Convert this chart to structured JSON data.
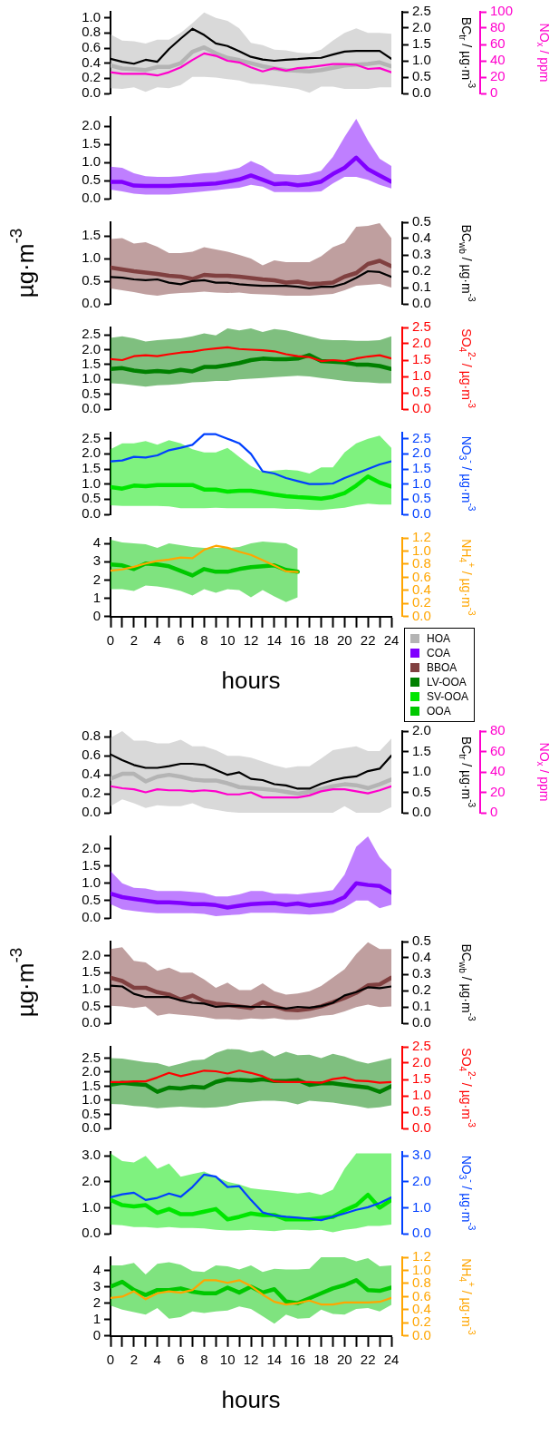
{
  "chart_data": [
    {
      "type": "line",
      "marker": "none",
      "x": [
        0,
        1,
        2,
        3,
        4,
        5,
        6,
        7,
        8,
        9,
        10,
        11,
        12,
        13,
        14,
        15,
        16,
        17,
        18,
        19,
        20,
        21,
        22,
        23,
        24
      ],
      "xlim": [
        0,
        24
      ],
      "tick_labels": "y",
      "ylim": [
        0,
        1.08
      ],
      "yticks": [
        {
          "value": 0,
          "label": "0.0"
        },
        0.2,
        0.4,
        0.6,
        0.8,
        {
          "value": 1,
          "label": "1.0"
        }
      ],
      "y2lim": [
        0,
        2.5
      ],
      "y2ticks": [
        {
          "value": 0,
          "label": "0.0"
        },
        0.5,
        {
          "value": 1,
          "label": "1.0"
        },
        1.5,
        {
          "value": 2,
          "label": "2.0"
        },
        2.5
      ],
      "y2label": "BC$_{tr}$ / µg·m$^{-3}$",
      "y3lim": [
        0,
        100
      ],
      "y3ticks": [
        0,
        20,
        40,
        60,
        80,
        100
      ],
      "y3label": "NO$_{x}$ / ppm",
      "series": [
        {
          "name": "HOA",
          "color": "#b4b4b4",
          "values": [
            0.37,
            0.33,
            0.32,
            0.31,
            0.35,
            0.35,
            0.4,
            0.55,
            0.61,
            0.53,
            0.47,
            0.44,
            0.4,
            0.36,
            0.33,
            0.31,
            0.3,
            0.29,
            0.31,
            0.34,
            0.37,
            0.38,
            0.39,
            0.41,
            0.36
          ],
          "upper": [
            0.78,
            0.7,
            0.69,
            0.66,
            0.71,
            0.71,
            0.8,
            0.93,
            1.07,
            1.0,
            0.96,
            0.86,
            0.67,
            0.64,
            0.58,
            0.57,
            0.54,
            0.53,
            0.58,
            0.7,
            0.8,
            0.86,
            0.8,
            0.8,
            0.79
          ],
          "lower": [
            0.07,
            0.06,
            0.08,
            0.02,
            0.08,
            0.07,
            0.11,
            0.22,
            0.22,
            0.21,
            0.19,
            0.17,
            0.13,
            0.12,
            0.1,
            0.08,
            0.06,
            0.01,
            0.09,
            0.09,
            0.06,
            0.06,
            0.06,
            0.08,
            0.08
          ]
        },
        {
          "color": "#000000",
          "axis": "y2",
          "values": [
            1.06,
            0.97,
            0.91,
            1.03,
            0.97,
            1.36,
            1.68,
            1.98,
            1.79,
            1.53,
            1.45,
            1.29,
            1.12,
            1.04,
            1.0,
            1.03,
            1.05,
            1.08,
            1.09,
            1.19,
            1.28,
            1.3,
            1.3,
            1.3,
            1.06
          ]
        },
        {
          "color": "#ff00cc",
          "axis": "y3",
          "values": [
            26,
            24,
            24,
            24,
            22,
            26,
            32,
            41,
            49,
            46,
            40,
            38,
            32,
            27,
            31,
            28,
            31,
            32,
            34,
            36,
            36,
            35,
            30,
            31,
            26
          ]
        }
      ]
    },
    {
      "type": "line",
      "marker": "none",
      "x": [
        0,
        1,
        2,
        3,
        4,
        5,
        6,
        7,
        8,
        9,
        10,
        11,
        12,
        13,
        14,
        15,
        16,
        17,
        18,
        19,
        20,
        21,
        22,
        23,
        24
      ],
      "xlim": [
        0,
        24
      ],
      "tick_labels": "y",
      "ylim": [
        0,
        2.25
      ],
      "yticks": [
        {
          "value": 0,
          "label": "0.0"
        },
        0.5,
        {
          "value": 1,
          "label": "1.0"
        },
        1.5,
        {
          "value": 2,
          "label": "2.0"
        }
      ],
      "series": [
        {
          "name": "COA",
          "color": "#8000ff",
          "values": [
            0.46,
            0.46,
            0.36,
            0.35,
            0.35,
            0.35,
            0.37,
            0.38,
            0.4,
            0.42,
            0.47,
            0.53,
            0.64,
            0.52,
            0.4,
            0.42,
            0.37,
            0.4,
            0.47,
            0.68,
            0.85,
            1.13,
            0.81,
            0.64,
            0.47
          ],
          "upper": [
            0.88,
            0.85,
            0.7,
            0.62,
            0.6,
            0.6,
            0.62,
            0.66,
            0.7,
            0.72,
            0.78,
            0.85,
            1.04,
            0.9,
            0.68,
            0.66,
            0.65,
            0.68,
            0.77,
            1.15,
            1.7,
            2.2,
            1.6,
            1.1,
            0.9
          ],
          "lower": [
            0.25,
            0.2,
            0.14,
            0.11,
            0.11,
            0.11,
            0.14,
            0.17,
            0.2,
            0.23,
            0.27,
            0.3,
            0.38,
            0.33,
            0.18,
            0.18,
            0.18,
            0.18,
            0.2,
            0.42,
            0.6,
            0.6,
            0.52,
            0.38,
            0.28
          ]
        }
      ]
    },
    {
      "type": "line",
      "marker": "none",
      "x": [
        0,
        1,
        2,
        3,
        4,
        5,
        6,
        7,
        8,
        9,
        10,
        11,
        12,
        13,
        14,
        15,
        16,
        17,
        18,
        19,
        20,
        21,
        22,
        23,
        24
      ],
      "xlim": [
        0,
        24
      ],
      "tick_labels": "y",
      "ylabel": "µg·m$^{-3}$",
      "ylim": [
        0,
        1.8
      ],
      "yticks": [
        {
          "value": 0,
          "label": "0.0"
        },
        0.5,
        {
          "value": 1,
          "label": "1.0"
        },
        1.5
      ],
      "y2lim": [
        0,
        0.5
      ],
      "y2ticks": [
        {
          "value": 0,
          "label": "0.0"
        },
        0.1,
        0.2,
        0.3,
        0.4,
        0.5
      ],
      "y2label": "BC$_{wb}$ / µg·m$^{-3}$",
      "series": [
        {
          "name": "BBOA",
          "color": "#804040",
          "values": [
            0.8,
            0.76,
            0.72,
            0.69,
            0.66,
            0.62,
            0.6,
            0.55,
            0.64,
            0.62,
            0.62,
            0.6,
            0.57,
            0.54,
            0.52,
            0.47,
            0.49,
            0.44,
            0.45,
            0.47,
            0.6,
            0.68,
            0.88,
            0.95,
            0.83
          ],
          "upper": [
            1.43,
            1.45,
            1.33,
            1.36,
            1.26,
            1.12,
            1.12,
            1.15,
            1.25,
            1.2,
            1.15,
            1.08,
            1.0,
            0.85,
            0.96,
            0.92,
            0.92,
            0.92,
            1.05,
            1.25,
            1.35,
            1.7,
            1.72,
            1.78,
            1.45
          ],
          "lower": [
            0.34,
            0.3,
            0.26,
            0.21,
            0.18,
            0.22,
            0.24,
            0.25,
            0.27,
            0.25,
            0.24,
            0.25,
            0.22,
            0.21,
            0.2,
            0.18,
            0.18,
            0.18,
            0.2,
            0.22,
            0.3,
            0.4,
            0.42,
            0.44,
            0.36
          ]
        },
        {
          "color": "#000000",
          "axis": "y2",
          "values": [
            0.165,
            0.16,
            0.15,
            0.145,
            0.15,
            0.13,
            0.12,
            0.14,
            0.145,
            0.13,
            0.13,
            0.12,
            0.115,
            0.11,
            0.11,
            0.11,
            0.105,
            0.095,
            0.105,
            0.105,
            0.125,
            0.16,
            0.2,
            0.195,
            0.165
          ]
        }
      ]
    },
    {
      "type": "line",
      "marker": "none",
      "x": [
        0,
        1,
        2,
        3,
        4,
        5,
        6,
        7,
        8,
        9,
        10,
        11,
        12,
        13,
        14,
        15,
        16,
        17,
        18,
        19,
        20,
        21,
        22,
        23,
        24
      ],
      "xlim": [
        0,
        24
      ],
      "tick_labels": "y",
      "ylim": [
        0,
        2.75
      ],
      "yticks": [
        {
          "value": 0,
          "label": "0.0"
        },
        0.5,
        {
          "value": 1,
          "label": "1.0"
        },
        1.5,
        {
          "value": 2,
          "label": "2.0"
        },
        2.5
      ],
      "y2lim": [
        0,
        2.5
      ],
      "y2ticks": [
        {
          "value": 0,
          "label": "0.0"
        },
        0.5,
        {
          "value": 1,
          "label": "1.0"
        },
        1.5,
        {
          "value": 2,
          "label": "2.0"
        },
        2.5
      ],
      "y2label": "SO$_{4}$$^{2-}$ / µg·m$^{-3}$",
      "series": [
        {
          "name": "LV-OOA",
          "color": "#008000",
          "values": [
            1.35,
            1.38,
            1.3,
            1.25,
            1.28,
            1.25,
            1.32,
            1.27,
            1.42,
            1.42,
            1.48,
            1.55,
            1.65,
            1.7,
            1.68,
            1.68,
            1.7,
            1.82,
            1.62,
            1.6,
            1.57,
            1.5,
            1.5,
            1.45,
            1.35
          ],
          "upper": [
            2.4,
            2.45,
            2.38,
            2.28,
            2.32,
            2.35,
            2.38,
            2.45,
            2.55,
            2.48,
            2.72,
            2.65,
            2.72,
            2.6,
            2.7,
            2.65,
            2.55,
            2.45,
            2.35,
            2.32,
            2.32,
            2.3,
            2.3,
            2.32,
            2.45
          ],
          "lower": [
            0.87,
            0.85,
            0.8,
            0.76,
            0.8,
            0.82,
            0.85,
            0.9,
            0.92,
            0.95,
            0.95,
            1.0,
            1.02,
            1.05,
            1.08,
            1.1,
            1.12,
            1.1,
            1.05,
            1.0,
            0.95,
            0.92,
            0.9,
            0.87,
            0.87
          ]
        },
        {
          "color": "#ff0000",
          "axis": "y2",
          "values": [
            1.53,
            1.5,
            1.62,
            1.65,
            1.62,
            1.68,
            1.73,
            1.76,
            1.82,
            1.86,
            1.89,
            1.84,
            1.82,
            1.8,
            1.77,
            1.68,
            1.62,
            1.59,
            1.47,
            1.5,
            1.47,
            1.55,
            1.61,
            1.65,
            1.55
          ]
        }
      ]
    },
    {
      "type": "line",
      "marker": "none",
      "x": [
        0,
        1,
        2,
        3,
        4,
        5,
        6,
        7,
        8,
        9,
        10,
        11,
        12,
        13,
        14,
        15,
        16,
        17,
        18,
        19,
        20,
        21,
        22,
        23,
        24
      ],
      "xlim": [
        0,
        24
      ],
      "tick_labels": "y",
      "ylim": [
        0,
        2.7
      ],
      "yticks": [
        {
          "value": 0,
          "label": "0.0"
        },
        0.5,
        {
          "value": 1,
          "label": "1.0"
        },
        1.5,
        {
          "value": 2,
          "label": "2.0"
        },
        2.5
      ],
      "y2lim": [
        0,
        2.7
      ],
      "y2ticks": [
        {
          "value": 0,
          "label": "0.0"
        },
        0.5,
        {
          "value": 1,
          "label": "1.0"
        },
        1.5,
        {
          "value": 2,
          "label": "2.0"
        },
        2.5
      ],
      "y2label": "NO$_{3}$$^{-}$ / µg·m$^{-3}$",
      "series": [
        {
          "name": "SV-OOA",
          "color": "#00e600",
          "values": [
            0.9,
            0.85,
            0.95,
            0.93,
            0.97,
            0.97,
            0.97,
            0.97,
            0.82,
            0.82,
            0.75,
            0.78,
            0.78,
            0.72,
            0.65,
            0.6,
            0.57,
            0.55,
            0.52,
            0.58,
            0.7,
            0.95,
            1.25,
            1.05,
            0.92
          ],
          "upper": [
            2.15,
            2.35,
            2.35,
            2.42,
            2.3,
            2.45,
            2.35,
            2.15,
            2.05,
            2.05,
            2.2,
            1.9,
            1.6,
            1.4,
            1.45,
            1.48,
            1.45,
            1.35,
            1.55,
            1.55,
            2.05,
            2.35,
            2.5,
            2.6,
            2.2
          ],
          "lower": [
            0.3,
            0.28,
            0.28,
            0.28,
            0.28,
            0.26,
            0.2,
            0.2,
            0.2,
            0.22,
            0.2,
            0.2,
            0.2,
            0.2,
            0.2,
            0.18,
            0.18,
            0.15,
            0.14,
            0.18,
            0.22,
            0.3,
            0.35,
            0.32,
            0.32
          ]
        },
        {
          "color": "#0040ff",
          "axis": "y2",
          "values": [
            1.75,
            1.78,
            1.9,
            1.88,
            1.95,
            2.12,
            2.2,
            2.3,
            2.65,
            2.65,
            2.5,
            2.35,
            2.0,
            1.42,
            1.35,
            1.2,
            1.1,
            1.0,
            1.0,
            1.02,
            1.2,
            1.35,
            1.5,
            1.65,
            1.75
          ]
        }
      ]
    },
    {
      "type": "line",
      "marker": "none",
      "legend": "right",
      "x": [
        0,
        1,
        2,
        3,
        4,
        5,
        6,
        7,
        8,
        9,
        10,
        11,
        12,
        13,
        14,
        15,
        16
      ],
      "xlim": [
        0,
        24
      ],
      "xticks": [
        0,
        {
          "value": 1,
          "label": null
        },
        2,
        {
          "value": 3,
          "label": null
        },
        4,
        {
          "value": 5,
          "label": null
        },
        6,
        {
          "value": 7,
          "label": null
        },
        8,
        {
          "value": 9,
          "label": null
        },
        10,
        {
          "value": 11,
          "label": null
        },
        12,
        {
          "value": 13,
          "label": null
        },
        14,
        {
          "value": 15,
          "label": null
        },
        16,
        {
          "value": 17,
          "label": null
        },
        18,
        {
          "value": 19,
          "label": null
        },
        20,
        {
          "value": 21,
          "label": null
        },
        22,
        {
          "value": 23,
          "label": null
        },
        24
      ],
      "xlabel": "hours",
      "ylim": [
        0,
        4.3
      ],
      "yticks": [
        0,
        1,
        2,
        3,
        4
      ],
      "y2lim": [
        0,
        1.2
      ],
      "y2ticks": [
        {
          "value": 0,
          "label": "0.0"
        },
        0.2,
        0.4,
        0.6,
        0.8,
        {
          "value": 1,
          "label": "1.0"
        },
        1.2
      ],
      "y2label": "NH$_{4}$$^{+}$ / µg·m$^{-3}$",
      "series": [
        {
          "name": "OOA",
          "color": "#00c800",
          "values": [
            2.85,
            2.8,
            2.6,
            2.9,
            2.85,
            2.75,
            2.5,
            2.25,
            2.6,
            2.45,
            2.45,
            2.6,
            2.7,
            2.75,
            2.8,
            2.55,
            2.45
          ],
          "upper": [
            4.2,
            4.05,
            4.0,
            3.95,
            3.75,
            4.0,
            3.9,
            3.8,
            3.75,
            3.75,
            3.75,
            3.8,
            4.0,
            4.1,
            4.05,
            4.0,
            3.7
          ],
          "lower": [
            1.5,
            1.5,
            1.4,
            1.7,
            1.65,
            1.55,
            1.4,
            1.15,
            1.5,
            1.3,
            1.5,
            1.45,
            1.05,
            1.45,
            1.1,
            0.8,
            1.05
          ]
        },
        {
          "color": "#ffa500",
          "axis": "y2",
          "values": [
            0.7,
            0.72,
            0.76,
            0.81,
            0.85,
            0.87,
            0.9,
            0.89,
            1.02,
            1.08,
            1.05,
            0.99,
            0.94,
            0.86,
            0.78,
            0.69,
            0.68
          ]
        }
      ]
    },
    {
      "type": "line",
      "marker": "none",
      "x": [
        0,
        1,
        2,
        3,
        4,
        5,
        6,
        7,
        8,
        9,
        10,
        11,
        12,
        13,
        14,
        15,
        16,
        17,
        18,
        19,
        20,
        21,
        22,
        23,
        24
      ],
      "xlim": [
        0,
        24
      ],
      "tick_labels": "y",
      "ylim": [
        0,
        0.86
      ],
      "yticks": [
        {
          "value": 0,
          "label": "0.0"
        },
        0.2,
        0.4,
        0.6,
        0.8
      ],
      "y2lim": [
        0,
        2
      ],
      "y2ticks": [
        {
          "value": 0,
          "label": "0.0"
        },
        0.5,
        {
          "value": 1,
          "label": "1.0"
        },
        1.5,
        {
          "value": 2,
          "label": "2.0"
        }
      ],
      "y2label": "BC$_{tr}$ / µg·m$^{-3}$",
      "y3lim": [
        0,
        80
      ],
      "y3ticks": [
        0,
        20,
        40,
        60,
        80
      ],
      "y3label": "NO$_{x}$ / ppm",
      "series": [
        {
          "color": "#b4b4b4",
          "values": [
            0.36,
            0.41,
            0.41,
            0.33,
            0.38,
            0.4,
            0.38,
            0.35,
            0.34,
            0.34,
            0.31,
            0.27,
            0.26,
            0.25,
            0.24,
            0.22,
            0.2,
            0.22,
            0.25,
            0.28,
            0.3,
            0.29,
            0.26,
            0.3,
            0.35
          ],
          "upper": [
            0.79,
            0.86,
            0.76,
            0.76,
            0.73,
            0.73,
            0.77,
            0.7,
            0.7,
            0.66,
            0.6,
            0.6,
            0.58,
            0.54,
            0.5,
            0.47,
            0.49,
            0.49,
            0.57,
            0.66,
            0.68,
            0.7,
            0.65,
            0.65,
            0.78
          ],
          "lower": [
            0.07,
            0.14,
            0.1,
            0.05,
            0.08,
            0.07,
            0.07,
            0.1,
            0.05,
            0.03,
            0.01,
            0,
            0,
            0,
            0,
            0,
            0,
            0,
            0,
            0,
            0.07,
            0,
            0,
            0,
            0.06
          ]
        },
        {
          "color": "#000000",
          "axis": "y2",
          "values": [
            1.43,
            1.29,
            1.17,
            1.1,
            1.1,
            1.14,
            1.2,
            1.2,
            1.17,
            1.05,
            0.93,
            0.99,
            0.83,
            0.8,
            0.7,
            0.67,
            0.59,
            0.59,
            0.71,
            0.8,
            0.86,
            0.89,
            1.02,
            1.08,
            1.4
          ]
        },
        {
          "color": "#ff00cc",
          "axis": "y3",
          "values": [
            26,
            24,
            23,
            20,
            23,
            22,
            22,
            21,
            22,
            21,
            18,
            18,
            20,
            15,
            15,
            15,
            15,
            17,
            21,
            23,
            23,
            21,
            19,
            22,
            26
          ]
        }
      ]
    },
    {
      "type": "line",
      "marker": "none",
      "x": [
        0,
        1,
        2,
        3,
        4,
        5,
        6,
        7,
        8,
        9,
        10,
        11,
        12,
        13,
        14,
        15,
        16,
        17,
        18,
        19,
        20,
        21,
        22,
        23,
        24
      ],
      "xlim": [
        0,
        24
      ],
      "tick_labels": "y",
      "ylim": [
        0,
        2.35
      ],
      "yticks": [
        {
          "value": 0,
          "label": "0.0"
        },
        0.5,
        {
          "value": 1,
          "label": "1.0"
        },
        1.5,
        {
          "value": 2,
          "label": "2.0"
        }
      ],
      "series": [
        {
          "color": "#8000ff",
          "values": [
            0.7,
            0.6,
            0.55,
            0.5,
            0.45,
            0.45,
            0.43,
            0.4,
            0.4,
            0.37,
            0.3,
            0.35,
            0.4,
            0.42,
            0.43,
            0.38,
            0.42,
            0.36,
            0.4,
            0.45,
            0.6,
            1.0,
            0.95,
            0.92,
            0.73
          ],
          "upper": [
            1.35,
            1.0,
            0.87,
            0.85,
            0.78,
            0.78,
            0.78,
            0.75,
            0.72,
            0.62,
            0.62,
            0.68,
            0.78,
            0.78,
            0.7,
            0.7,
            0.68,
            0.72,
            0.75,
            0.8,
            1.25,
            2.05,
            2.35,
            1.75,
            1.4
          ],
          "lower": [
            0.4,
            0.25,
            0.2,
            0.16,
            0.14,
            0.14,
            0.14,
            0.14,
            0.12,
            0.05,
            0.08,
            0.1,
            0.15,
            0.15,
            0.15,
            0.13,
            0.12,
            0.1,
            0.12,
            0.15,
            0.3,
            0.5,
            0.5,
            0.28,
            0.38
          ]
        }
      ]
    },
    {
      "type": "line",
      "marker": "none",
      "x": [
        0,
        1,
        2,
        3,
        4,
        5,
        6,
        7,
        8,
        9,
        10,
        11,
        12,
        13,
        14,
        15,
        16,
        17,
        18,
        19,
        20,
        21,
        22,
        23,
        24
      ],
      "xlim": [
        0,
        24
      ],
      "tick_labels": "y",
      "ylabel": "µg·m$^{-3}$",
      "ylim": [
        0,
        2.42
      ],
      "yticks": [
        {
          "value": 0,
          "label": "0.0"
        },
        0.5,
        {
          "value": 1,
          "label": "1.0"
        },
        1.5,
        {
          "value": 2,
          "label": "2.0"
        }
      ],
      "y2lim": [
        0,
        0.5
      ],
      "y2ticks": [
        {
          "value": 0,
          "label": "0.0"
        },
        0.1,
        0.2,
        0.3,
        0.4,
        0.5
      ],
      "y2label": "BC$_{wb}$ / µg·m$^{-3}$",
      "series": [
        {
          "color": "#804040",
          "values": [
            1.35,
            1.25,
            1.05,
            1.05,
            0.92,
            0.85,
            0.7,
            0.82,
            0.65,
            0.58,
            0.55,
            0.5,
            0.45,
            0.62,
            0.5,
            0.4,
            0.38,
            0.42,
            0.5,
            0.62,
            0.75,
            0.9,
            1.12,
            1.15,
            1.35
          ],
          "upper": [
            2.2,
            2.25,
            1.85,
            1.8,
            1.55,
            1.65,
            1.5,
            1.5,
            1.3,
            1.05,
            1.2,
            0.98,
            0.98,
            1.18,
            0.95,
            0.85,
            0.88,
            0.95,
            1.1,
            1.35,
            1.6,
            2.05,
            2.4,
            2.2,
            2.2
          ],
          "lower": [
            0.52,
            0.5,
            0.45,
            0.5,
            0.22,
            0.28,
            0.25,
            0.22,
            0.18,
            0.12,
            0.12,
            0.1,
            0.14,
            0.12,
            0.15,
            0.1,
            0.1,
            0.15,
            0.22,
            0.25,
            0.35,
            0.48,
            0.55,
            0.48,
            0.5
          ]
        },
        {
          "color": "#000000",
          "axis": "y2",
          "values": [
            0.23,
            0.225,
            0.18,
            0.16,
            0.16,
            0.16,
            0.14,
            0.125,
            0.12,
            0.1,
            0.105,
            0.105,
            0.1,
            0.1,
            0.1,
            0.09,
            0.1,
            0.095,
            0.105,
            0.125,
            0.17,
            0.19,
            0.22,
            0.215,
            0.225
          ]
        }
      ]
    },
    {
      "type": "line",
      "marker": "none",
      "x": [
        0,
        1,
        2,
        3,
        4,
        5,
        6,
        7,
        8,
        9,
        10,
        11,
        12,
        13,
        14,
        15,
        16,
        17,
        18,
        19,
        20,
        21,
        22,
        23,
        24
      ],
      "xlim": [
        0,
        24
      ],
      "tick_labels": "y",
      "ylim": [
        0,
        2.9
      ],
      "yticks": [
        {
          "value": 0,
          "label": "0.0"
        },
        0.5,
        {
          "value": 1,
          "label": "1.0"
        },
        1.5,
        {
          "value": 2,
          "label": "2.0"
        },
        2.5
      ],
      "y2lim": [
        0,
        2.5
      ],
      "y2ticks": [
        {
          "value": 0,
          "label": "0.0"
        },
        0.5,
        {
          "value": 1,
          "label": "1.0"
        },
        1.5,
        {
          "value": 2,
          "label": "2.0"
        },
        2.5
      ],
      "y2label": "SO$_{4}$$^{2-}$ / µg·m$^{-3}$",
      "series": [
        {
          "color": "#008000",
          "values": [
            1.55,
            1.62,
            1.58,
            1.55,
            1.3,
            1.45,
            1.42,
            1.48,
            1.45,
            1.65,
            1.75,
            1.72,
            1.7,
            1.75,
            1.68,
            1.68,
            1.72,
            1.55,
            1.6,
            1.6,
            1.55,
            1.5,
            1.45,
            1.3,
            1.5
          ],
          "upper": [
            2.5,
            2.48,
            2.42,
            2.35,
            2.32,
            2.2,
            2.3,
            2.42,
            2.45,
            2.68,
            2.82,
            2.8,
            2.7,
            2.78,
            2.55,
            2.72,
            2.6,
            2.62,
            2.5,
            2.65,
            2.55,
            2.4,
            2.3,
            2.4,
            2.5
          ],
          "lower": [
            0.87,
            0.85,
            0.8,
            0.77,
            0.72,
            0.75,
            0.77,
            0.75,
            0.73,
            0.75,
            0.8,
            0.9,
            0.95,
            0.98,
            0.98,
            0.95,
            0.85,
            0.98,
            0.95,
            0.92,
            0.85,
            0.8,
            0.72,
            0.75,
            0.82
          ]
        },
        {
          "color": "#ff0000",
          "axis": "y2",
          "values": [
            1.42,
            1.42,
            1.44,
            1.44,
            1.56,
            1.7,
            1.6,
            1.68,
            1.77,
            1.75,
            1.68,
            1.77,
            1.7,
            1.6,
            1.44,
            1.42,
            1.42,
            1.42,
            1.4,
            1.51,
            1.56,
            1.46,
            1.45,
            1.4,
            1.42
          ]
        }
      ]
    },
    {
      "type": "line",
      "marker": "none",
      "x": [
        0,
        1,
        2,
        3,
        4,
        5,
        6,
        7,
        8,
        9,
        10,
        11,
        12,
        13,
        14,
        15,
        16,
        17,
        18,
        19,
        20,
        21,
        22,
        23,
        24
      ],
      "xlim": [
        0,
        24
      ],
      "tick_labels": "y",
      "ylim": [
        0,
        3.15
      ],
      "yticks": [
        {
          "value": 0,
          "label": "0.0"
        },
        {
          "value": 1,
          "label": "1.0"
        },
        {
          "value": 2,
          "label": "2.0"
        },
        {
          "value": 3,
          "label": "3.0"
        }
      ],
      "y2lim": [
        0,
        3.15
      ],
      "y2ticks": [
        {
          "value": 0,
          "label": "0.0"
        },
        {
          "value": 1,
          "label": "1.0"
        },
        {
          "value": 2,
          "label": "2.0"
        },
        {
          "value": 3,
          "label": "3.0"
        }
      ],
      "y2label": "NO$_{3}$$^{-}$ / µg·m$^{-3}$",
      "series": [
        {
          "color": "#00e600",
          "values": [
            1.3,
            1.1,
            1.05,
            1.1,
            0.8,
            0.95,
            0.75,
            0.75,
            0.85,
            0.95,
            0.55,
            0.65,
            0.78,
            0.72,
            0.72,
            0.55,
            0.55,
            0.55,
            0.6,
            0.65,
            0.9,
            1.1,
            1.5,
            1.0,
            1.3
          ],
          "upper": [
            3.1,
            2.8,
            2.75,
            3.0,
            2.5,
            2.7,
            2.2,
            2.3,
            2.4,
            2.2,
            2.0,
            1.9,
            1.75,
            1.7,
            1.65,
            1.6,
            1.55,
            1.6,
            1.5,
            1.7,
            2.5,
            3.1,
            3.1,
            3.1,
            3.1
          ],
          "lower": [
            0.35,
            0.32,
            0.25,
            0.25,
            0.22,
            0.25,
            0.22,
            0.22,
            0.2,
            0.15,
            0.12,
            0.12,
            0.15,
            0.12,
            0.1,
            0.15,
            0.15,
            0.12,
            0.15,
            0.05,
            0.15,
            0.2,
            0.3,
            0.3,
            0.35
          ]
        },
        {
          "color": "#0040ff",
          "axis": "y2",
          "values": [
            1.4,
            1.52,
            1.58,
            1.3,
            1.38,
            1.55,
            1.42,
            1.8,
            2.28,
            2.2,
            1.8,
            1.83,
            1.3,
            0.82,
            0.7,
            0.65,
            0.62,
            0.57,
            0.52,
            0.65,
            0.78,
            0.92,
            1.02,
            1.18,
            1.4
          ]
        }
      ]
    },
    {
      "type": "line",
      "marker": "none",
      "x": [
        0,
        1,
        2,
        3,
        4,
        5,
        6,
        7,
        8,
        9,
        10,
        11,
        12,
        13,
        14,
        15,
        16,
        17,
        18,
        19,
        20,
        21,
        22,
        23,
        24
      ],
      "xlim": [
        0,
        24
      ],
      "xticks": [
        0,
        {
          "value": 1,
          "label": null
        },
        2,
        {
          "value": 3,
          "label": null
        },
        4,
        {
          "value": 5,
          "label": null
        },
        6,
        {
          "value": 7,
          "label": null
        },
        8,
        {
          "value": 9,
          "label": null
        },
        10,
        {
          "value": 11,
          "label": null
        },
        12,
        {
          "value": 13,
          "label": null
        },
        14,
        {
          "value": 15,
          "label": null
        },
        16,
        {
          "value": 17,
          "label": null
        },
        18,
        {
          "value": 19,
          "label": null
        },
        20,
        {
          "value": 21,
          "label": null
        },
        22,
        {
          "value": 23,
          "label": null
        },
        24
      ],
      "xlabel": "hours",
      "ylim": [
        0,
        4.8
      ],
      "yticks": [
        0,
        1,
        2,
        3,
        4
      ],
      "y2lim": [
        0,
        1.2
      ],
      "y2ticks": [
        {
          "value": 0,
          "label": "0.0"
        },
        0.2,
        0.4,
        0.6,
        0.8,
        {
          "value": 1,
          "label": "1.0"
        },
        1.2
      ],
      "y2label": "NH$_{4}$$^{+}$ / µg·m$^{-3}$",
      "series": [
        {
          "color": "#00c800",
          "values": [
            3.0,
            3.3,
            2.8,
            2.5,
            2.8,
            2.8,
            2.9,
            2.7,
            2.6,
            2.6,
            2.95,
            2.65,
            3.0,
            2.65,
            2.85,
            2.1,
            2.0,
            2.3,
            2.6,
            2.9,
            3.1,
            3.4,
            2.8,
            2.75,
            2.95
          ],
          "upper": [
            4.3,
            4.3,
            4.45,
            3.75,
            4.4,
            4.5,
            4.35,
            3.95,
            3.9,
            4.3,
            4.25,
            4.05,
            4.3,
            3.9,
            4.1,
            4.05,
            4.05,
            4.1,
            4.8,
            4.8,
            4.8,
            4.55,
            4.75,
            4.25,
            4.3
          ],
          "lower": [
            1.85,
            1.6,
            1.45,
            1.3,
            1.7,
            1.05,
            1.15,
            1.5,
            1.4,
            1.5,
            1.55,
            1.8,
            1.65,
            1.2,
            0.75,
            1.3,
            1.05,
            1.1,
            1.6,
            1.35,
            1.3,
            1.65,
            1.7,
            1.5,
            1.9
          ]
        },
        {
          "color": "#ffa500",
          "axis": "y2",
          "values": [
            0.58,
            0.6,
            0.68,
            0.56,
            0.65,
            0.68,
            0.66,
            0.7,
            0.85,
            0.85,
            0.81,
            0.85,
            0.76,
            0.63,
            0.52,
            0.48,
            0.5,
            0.54,
            0.48,
            0.48,
            0.51,
            0.51,
            0.51,
            0.52,
            0.58
          ]
        }
      ]
    }
  ]
}
